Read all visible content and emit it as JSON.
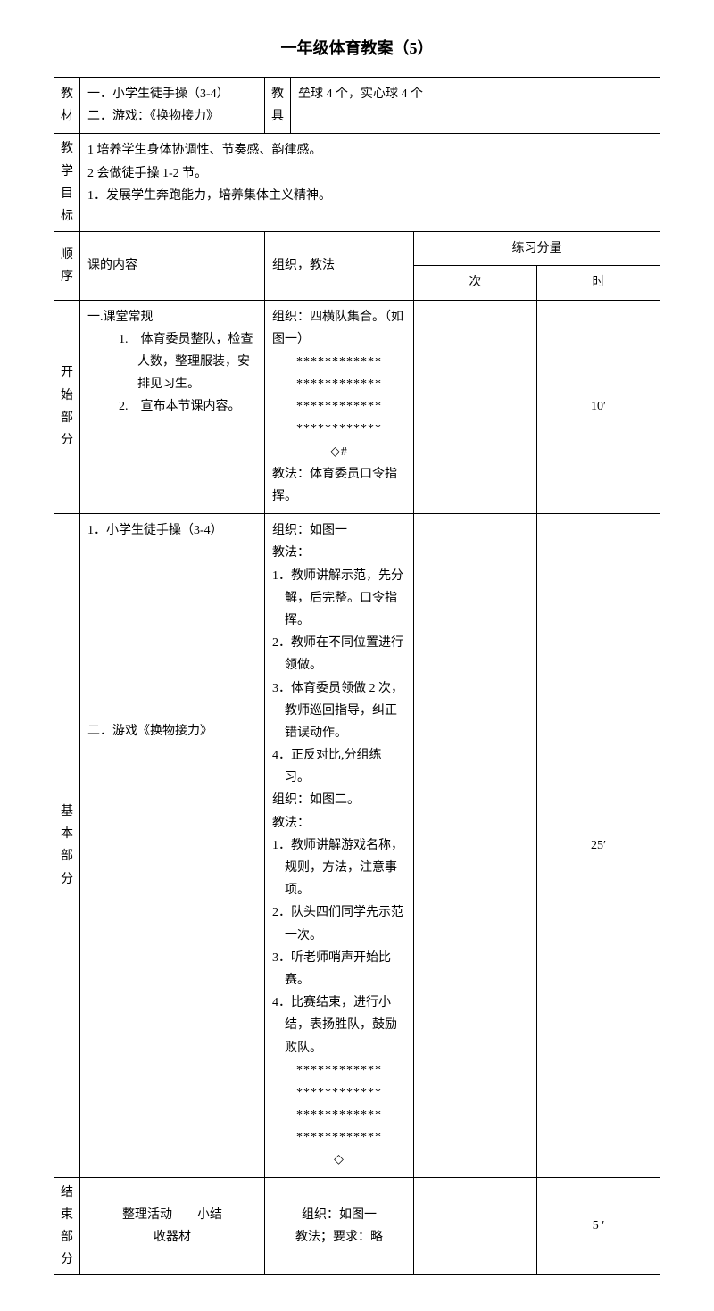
{
  "title": "一年级体育教案（5）",
  "header": {
    "label_jiaocai": "教材",
    "jiaocai_1": "一．小学生徒手操（3-4）",
    "jiaocai_2": "二．游戏：《换物接力》",
    "label_jiaoju": "教具",
    "jiaoju": "垒球 4 个，实心球 4 个",
    "label_mubiao": "教学目标",
    "mubiao_1": "1 培养学生身体协调性、节奏感、韵律感。",
    "mubiao_2": "2 会做徒手操 1-2 节。",
    "mubiao_3": "1．发展学生奔跑能力，培养集体主义精神。"
  },
  "cols": {
    "shunxu": "顺序",
    "neirong": "课的内容",
    "fangfa": "组织，教法",
    "fenliang": "练习分量",
    "ci": "次",
    "shi": "时"
  },
  "kaishi": {
    "label": "开始部分",
    "content_title": "一.课堂常规",
    "content_1": "1.　体育委员整队，检查人数，整理服装，安排见习生。",
    "content_2": "2.　宣布本节课内容。",
    "method_title": "组织：四横队集合。（如图一）",
    "stars": "************",
    "diamond": "◇#",
    "method_foot": "教法：体育委员口令指挥。",
    "time": "10′"
  },
  "jiben": {
    "label": "基本部分",
    "content_1": "1．小学生徒手操（3-4）",
    "content_2": "二．游戏《换物接力》",
    "m1": "组织：如图一",
    "m2": "教法：",
    "m3": "1．教师讲解示范，先分解，后完整。口令指挥。",
    "m4": "2．教师在不同位置进行领做。",
    "m5": "3．体育委员领做 2 次，教师巡回指导，纠正错误动作。",
    "m6": "4．正反对比,分组练习。",
    "m7": "组织：如图二。",
    "m8": "教法：",
    "m9": "1．教师讲解游戏名称，规则，方法，注意事项。",
    "m10": "2．队头四们同学先示范一次。",
    "m11": "3．听老师哨声开始比赛。",
    "m12": "4．比赛结束，进行小结，表扬胜队，鼓励败队。",
    "stars": "************",
    "diamond": "◇",
    "time": "25′"
  },
  "jieshu": {
    "label": "结束部分",
    "content_1": "整理活动　　小结",
    "content_2": "收器材",
    "m1": "组织：如图一",
    "m2": "教法；要求：略",
    "time": "5 ′"
  }
}
